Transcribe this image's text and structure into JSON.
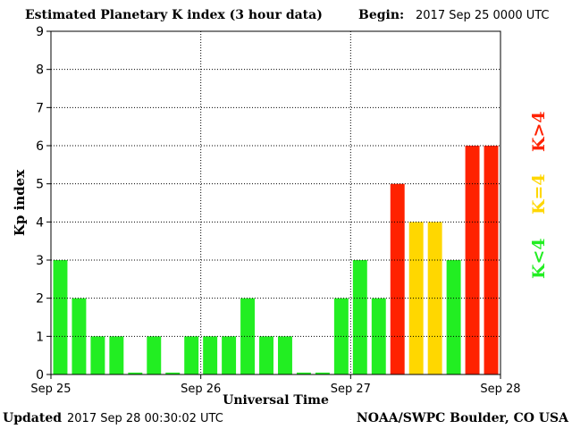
{
  "header": {
    "title": "Estimated Planetary K index (3 hour data)",
    "begin_label": "Begin:",
    "begin_value": "2017 Sep 25 0000 UTC"
  },
  "footer": {
    "updated_label": "Updated",
    "updated_value": "2017 Sep 28 00:30:02 UTC",
    "source": "NOAA/SWPC Boulder, CO USA"
  },
  "legend": [
    {
      "label": "K<4",
      "color": "#22ee22"
    },
    {
      "label": "K=4",
      "color": "#ffd700"
    },
    {
      "label": "K>4",
      "color": "#ff2200"
    }
  ],
  "chart_data": {
    "type": "bar",
    "title": "Estimated Planetary K index (3 hour data)",
    "xlabel": "Universal Time",
    "ylabel": "Kp index",
    "ylim": [
      0,
      9
    ],
    "yticks": [
      0,
      1,
      2,
      3,
      4,
      5,
      6,
      7,
      8,
      9
    ],
    "xticks": [
      "Sep 25",
      "Sep 26",
      "Sep 27",
      "Sep 28"
    ],
    "grid": true,
    "values": [
      3,
      2,
      1,
      1,
      0.05,
      1,
      0.05,
      1,
      1,
      1,
      2,
      1,
      1,
      0.05,
      0.05,
      2,
      3,
      2,
      5,
      4,
      4,
      3,
      6,
      6
    ],
    "color_rule": {
      "below_4": "#22ee22",
      "equal_4": "#ffd700",
      "above_4": "#ff2200"
    }
  }
}
